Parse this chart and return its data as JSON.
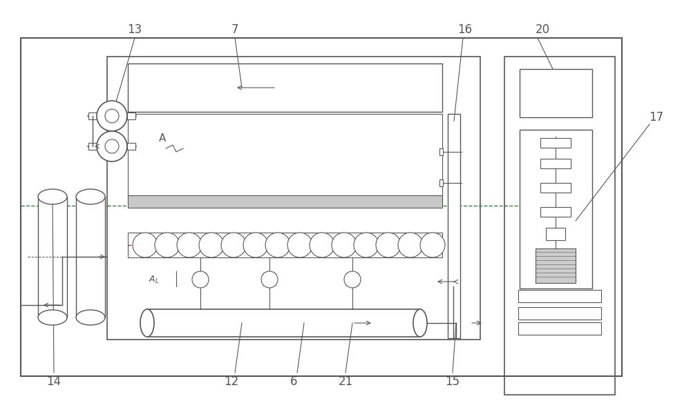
{
  "bg_color": "#ffffff",
  "lc": "#555555",
  "gc": "#3a7a3a",
  "gray_fill": "#d0d0d0",
  "label_fs": 12
}
